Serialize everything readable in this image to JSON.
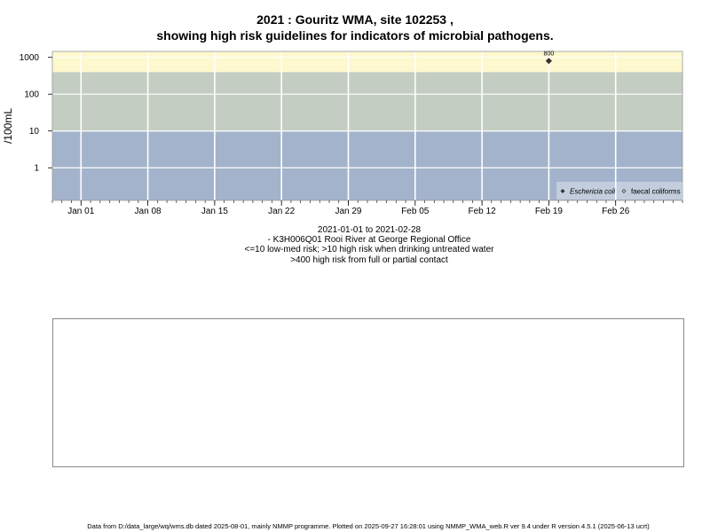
{
  "title_line1": "2021 : Gouritz WMA, site 102253 ,",
  "title_line2": "showing high risk guidelines for indicators of microbial pathogens.",
  "subtitle_lines": [
    "2021-01-01 to 2021-02-28",
    "- K3H006Q01 Rooi River at George Regional Office",
    "<=10 low-med risk; >10 high risk when drinking untreated water",
    ">400 high risk from full or partial contact"
  ],
  "footer": "Data from D:/data_large/wq/wms.db dated 2025-08-01, mainly NMMP programme. Plotted on 2025-09-27 16:28:01 using NMMP_WMA_web.R ver 9.4 under R version 4.5.1 (2025-06-13 ucrt)",
  "colors": {
    "band_low": "#a3b3cb",
    "band_mid": "#c4cdc2",
    "band_high": "#fdf8ce",
    "grid": "#ffffff",
    "point": "#333333"
  },
  "chart_data": {
    "type": "scatter",
    "title": "2021 : Gouritz WMA, site 102253 ,",
    "ylabel": "/100mL",
    "xlabel": "",
    "x_range": [
      "2020-12-29",
      "2021-03-05"
    ],
    "y_scale": "log10",
    "y_range": [
      0.13,
      1450
    ],
    "y_ticks": [
      1,
      10,
      100,
      1000
    ],
    "y_tick_labels": [
      "1",
      "10",
      "100",
      "1000"
    ],
    "x_ticks": [
      "2021-01-01",
      "2021-01-08",
      "2021-01-15",
      "2021-01-22",
      "2021-01-29",
      "2021-02-05",
      "2021-02-12",
      "2021-02-19",
      "2021-02-26"
    ],
    "x_tick_labels": [
      "Jan 01",
      "Jan 08",
      "Jan 15",
      "Jan 22",
      "Jan 29",
      "Feb 05",
      "Feb 12",
      "Feb 19",
      "Feb 26"
    ],
    "bands": [
      {
        "from": 0.13,
        "to": 10,
        "color": "#a3b3cb"
      },
      {
        "from": 10,
        "to": 400,
        "color": "#c4cdc2"
      },
      {
        "from": 400,
        "to": 1450,
        "color": "#fdf8ce"
      }
    ],
    "grid": true,
    "legend_position": "bottom-right",
    "series": [
      {
        "name": "Eschericia coli",
        "marker": "filled-diamond",
        "points": [
          {
            "x": "2021-02-19",
            "y": 800,
            "label": "800"
          }
        ]
      },
      {
        "name": "faecal coliforms",
        "marker": "open-diamond",
        "points": []
      }
    ]
  }
}
